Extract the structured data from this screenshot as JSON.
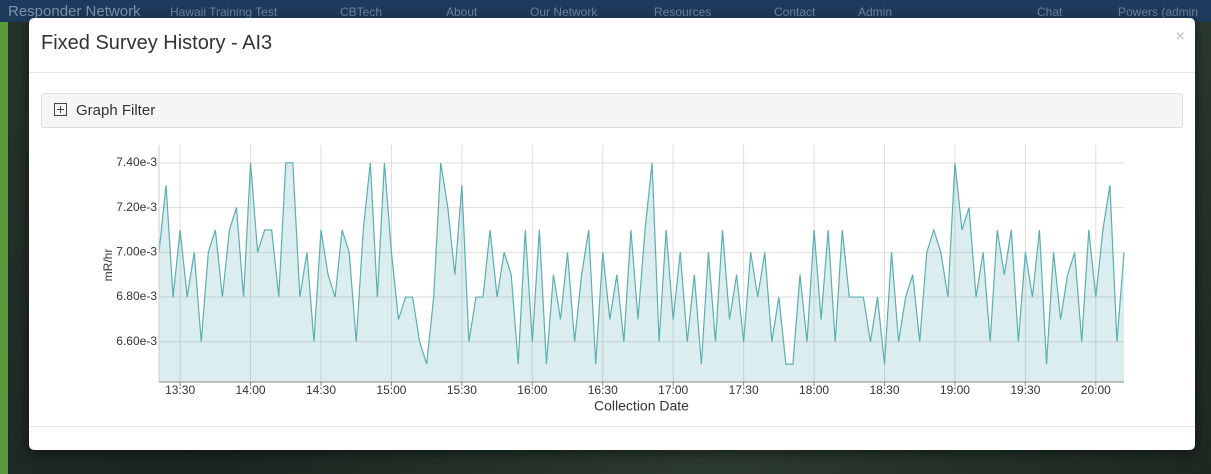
{
  "navbar": {
    "brand": "Responder Network",
    "items": [
      "Hawaii Training Test",
      "CBTech",
      "About",
      "Our Network",
      "Resources",
      "Contact",
      "Admin"
    ],
    "right": [
      "Chat",
      "Powers (admin"
    ]
  },
  "modal": {
    "title": "Fixed Survey History - AI3",
    "close": "×",
    "filter": "Graph Filter"
  },
  "chart_data": {
    "type": "area",
    "x_label": "Collection Date",
    "y_label": "mR/hr",
    "color": "#5aafb0",
    "x": [
      "13:21",
      "13:24",
      "13:27",
      "13:30",
      "13:33",
      "13:36",
      "13:39",
      "13:42",
      "13:45",
      "13:48",
      "13:51",
      "13:54",
      "13:57",
      "14:00",
      "14:03",
      "14:06",
      "14:09",
      "14:12",
      "14:15",
      "14:18",
      "14:21",
      "14:24",
      "14:27",
      "14:30",
      "14:33",
      "14:36",
      "14:39",
      "14:42",
      "14:45",
      "14:48",
      "14:51",
      "14:54",
      "14:57",
      "15:00",
      "15:03",
      "15:06",
      "15:09",
      "15:12",
      "15:15",
      "15:18",
      "15:21",
      "15:24",
      "15:27",
      "15:30",
      "15:33",
      "15:36",
      "15:39",
      "15:42",
      "15:45",
      "15:48",
      "15:51",
      "15:54",
      "15:57",
      "16:00",
      "16:03",
      "16:06",
      "16:09",
      "16:12",
      "16:15",
      "16:18",
      "16:21",
      "16:24",
      "16:27",
      "16:30",
      "16:33",
      "16:36",
      "16:39",
      "16:42",
      "16:45",
      "16:48",
      "16:51",
      "16:54",
      "16:57",
      "17:00",
      "17:03",
      "17:06",
      "17:09",
      "17:12",
      "17:15",
      "17:18",
      "17:21",
      "17:24",
      "17:27",
      "17:30",
      "17:33",
      "17:36",
      "17:39",
      "17:42",
      "17:45",
      "17:48",
      "17:51",
      "17:54",
      "17:57",
      "18:00",
      "18:03",
      "18:06",
      "18:09",
      "18:12",
      "18:15",
      "18:18",
      "18:21",
      "18:24",
      "18:27",
      "18:30",
      "18:33",
      "18:36",
      "18:39",
      "18:42",
      "18:45",
      "18:48",
      "18:51",
      "18:54",
      "18:57",
      "19:00",
      "19:03",
      "19:06",
      "19:09",
      "19:12",
      "19:15",
      "19:18",
      "19:21",
      "19:24",
      "19:27",
      "19:30",
      "19:33",
      "19:36",
      "19:39",
      "19:42",
      "19:45",
      "19:48",
      "19:51",
      "19:54",
      "19:57",
      "20:00",
      "20:03",
      "20:06",
      "20:09",
      "20:12"
    ],
    "values": [
      0.007,
      0.0073,
      0.0068,
      0.0071,
      0.0068,
      0.007,
      0.0066,
      0.007,
      0.0071,
      0.0068,
      0.0071,
      0.0072,
      0.0068,
      0.0074,
      0.007,
      0.0071,
      0.0071,
      0.0068,
      0.0074,
      0.0074,
      0.0068,
      0.007,
      0.0066,
      0.0071,
      0.0069,
      0.0068,
      0.0071,
      0.007,
      0.0066,
      0.0071,
      0.0074,
      0.0068,
      0.0074,
      0.007,
      0.0067,
      0.0068,
      0.0068,
      0.0066,
      0.0065,
      0.0068,
      0.0074,
      0.0072,
      0.0069,
      0.0073,
      0.0066,
      0.0068,
      0.0068,
      0.0071,
      0.0068,
      0.007,
      0.0069,
      0.0065,
      0.0071,
      0.0066,
      0.0071,
      0.0065,
      0.0069,
      0.0067,
      0.007,
      0.0066,
      0.0069,
      0.0071,
      0.0065,
      0.007,
      0.0067,
      0.0069,
      0.0066,
      0.0071,
      0.0067,
      0.0071,
      0.0074,
      0.0066,
      0.0071,
      0.0067,
      0.007,
      0.0066,
      0.0069,
      0.0065,
      0.007,
      0.0066,
      0.0071,
      0.0067,
      0.0069,
      0.0066,
      0.007,
      0.0068,
      0.007,
      0.0066,
      0.0068,
      0.0065,
      0.0065,
      0.0069,
      0.0066,
      0.0071,
      0.0067,
      0.0071,
      0.0066,
      0.0071,
      0.0068,
      0.0068,
      0.0068,
      0.0066,
      0.0068,
      0.0065,
      0.007,
      0.0066,
      0.0068,
      0.0069,
      0.0066,
      0.007,
      0.0071,
      0.007,
      0.0068,
      0.0074,
      0.0071,
      0.0072,
      0.0068,
      0.007,
      0.0066,
      0.0071,
      0.0069,
      0.0071,
      0.0066,
      0.007,
      0.0068,
      0.0071,
      0.0065,
      0.007,
      0.0067,
      0.0069,
      0.007,
      0.0066,
      0.0071,
      0.0068,
      0.0071,
      0.0073,
      0.0066,
      0.007
    ],
    "xlim": [
      "13:21",
      "20:12"
    ],
    "xticks": [
      "13:30",
      "14:00",
      "14:30",
      "15:00",
      "15:30",
      "16:00",
      "16:30",
      "17:00",
      "17:30",
      "18:00",
      "18:30",
      "19:00",
      "19:30",
      "20:00"
    ],
    "ylim": [
      0.00642,
      0.00748
    ],
    "yticks": [
      {
        "value": 0.0066,
        "label": "6.60e-3"
      },
      {
        "value": 0.0068,
        "label": "6.80e-3"
      },
      {
        "value": 0.007,
        "label": "7.00e-3"
      },
      {
        "value": 0.0072,
        "label": "7.20e-3"
      },
      {
        "value": 0.0074,
        "label": "7.40e-3"
      }
    ],
    "grid": true
  }
}
